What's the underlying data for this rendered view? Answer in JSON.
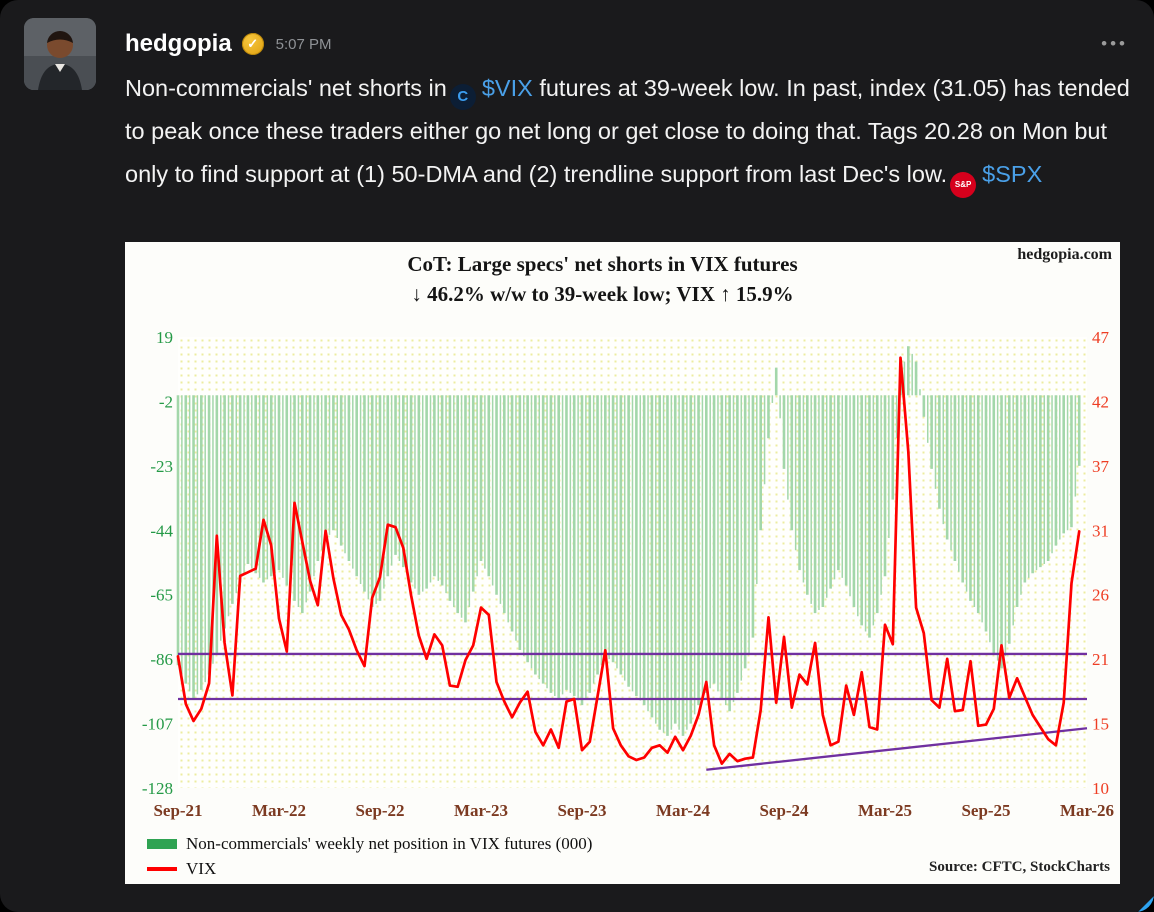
{
  "post": {
    "author": "hedgopia",
    "time": "5:07 PM",
    "badge_check": "✓",
    "menu_label": "•••",
    "body": {
      "segments": [
        {
          "type": "text",
          "text": "Non-commercials' net shorts in"
        },
        {
          "type": "cashtag",
          "symbol": "$VIX",
          "icon_label": "C",
          "icon_bg": "#0c1e35",
          "icon_color": "#3b9df0",
          "icon_font": "15px",
          "icon_name": "cboe-icon"
        },
        {
          "type": "text",
          "text": " futures at 39-week low. In past, index (31.05) has tended to peak once these traders either go net long or get close to doing that. Tags 20.28 on Mon but only to find support at (1) 50-DMA and (2) trendline support from last Dec's low."
        },
        {
          "type": "cashtag",
          "symbol": "$SPX",
          "icon_label": "S&P",
          "icon_bg": "#d6001c",
          "icon_color": "#ffffff",
          "icon_font": "8px",
          "icon_name": "sp500-icon"
        }
      ]
    }
  },
  "chart_data": {
    "type": "bar+line",
    "title": "CoT: Large specs' net shorts in VIX futures",
    "subtitle": "↓ 46.2% w/w to 39-week low; VIX ↑ 15.9%",
    "watermark": "hedgopia.com",
    "source": "Source: CFTC, StockCharts",
    "x_tick_labels": [
      "Sep-21",
      "Mar-22",
      "Sep-22",
      "Mar-23",
      "Sep-23",
      "Mar-24",
      "Sep-24",
      "Mar-25",
      "Sep-25",
      "Mar-26"
    ],
    "x_tick_color": "#7c3a21",
    "points_per_interval": 13,
    "left_axis": {
      "ticks": [
        19,
        -2,
        -23,
        -44,
        -65,
        -86,
        -107,
        -128
      ],
      "range": [
        19,
        -128
      ],
      "color": "#259a47"
    },
    "right_axis": {
      "ticks": [
        47,
        42,
        37,
        31,
        26,
        21,
        15,
        10
      ],
      "range": [
        47,
        10
      ],
      "color": "#ee3d23"
    },
    "series": [
      {
        "name": "Non-commercials' weekly net position in VIX futures (000)",
        "type": "bar",
        "axis": "left",
        "color": "#a3d7aa",
        "legend_color": "#2fa352",
        "values": [
          -88,
          -94,
          -99,
          -96,
          -91,
          -84,
          -76,
          -68,
          -61,
          -55,
          -58,
          -61,
          -59,
          -57,
          -62,
          -67,
          -71,
          -64,
          -54,
          -47,
          -44,
          -49,
          -54,
          -59,
          -64,
          -69,
          -67,
          -59,
          -52,
          -56,
          -61,
          -65,
          -63,
          -59,
          -62,
          -67,
          -71,
          -74,
          -64,
          -54,
          -59,
          -65,
          -71,
          -77,
          -83,
          -87,
          -91,
          -94,
          -97,
          -99,
          -96,
          -98,
          -101,
          -97,
          -91,
          -85,
          -87,
          -91,
          -95,
          -98,
          -101,
          -105,
          -109,
          -111,
          -107,
          -111,
          -107,
          -101,
          -97,
          -94,
          -99,
          -103,
          -97,
          -89,
          -79,
          -44,
          -14,
          9,
          -24,
          -44,
          -57,
          -65,
          -71,
          -69,
          -63,
          -57,
          -62,
          -69,
          -75,
          -79,
          -71,
          -59,
          -34,
          6,
          16,
          11,
          -7,
          -24,
          -37,
          -47,
          -54,
          -61,
          -67,
          -71,
          -77,
          -84,
          -89,
          -81,
          -69,
          -61,
          -58,
          -56,
          -54,
          -49,
          -45,
          -43,
          -23
        ]
      },
      {
        "name": "VIX",
        "type": "line",
        "axis": "right",
        "color": "#ff0000",
        "legend_color": "#ff0000",
        "values": [
          20.8,
          16.9,
          15.5,
          16.5,
          18.6,
          30.7,
          21.9,
          17.6,
          27.4,
          27.7,
          28.0,
          32.0,
          29.9,
          23.9,
          21.2,
          33.4,
          30.2,
          27.0,
          25.0,
          31.1,
          27.2,
          24.2,
          23.0,
          21.3,
          20.0,
          25.6,
          27.3,
          31.6,
          31.4,
          29.7,
          25.8,
          22.5,
          20.6,
          22.6,
          21.7,
          18.4,
          18.3,
          20.5,
          21.7,
          24.8,
          24.2,
          18.7,
          17.1,
          15.8,
          17.0,
          17.9,
          14.6,
          13.5,
          14.8,
          13.3,
          17.1,
          17.3,
          13.1,
          13.8,
          17.5,
          21.3,
          14.9,
          13.5,
          12.6,
          12.3,
          12.5,
          13.3,
          13.5,
          12.9,
          14.2,
          13.1,
          14.3,
          16.0,
          18.7,
          13.5,
          12.0,
          12.8,
          12.2,
          12.4,
          12.5,
          16.4,
          24.0,
          17.0,
          22.4,
          16.6,
          19.3,
          18.5,
          21.9,
          16.0,
          13.5,
          13.8,
          18.4,
          16.0,
          19.5,
          15.0,
          14.8,
          23.4,
          21.8,
          45.3,
          37.6,
          24.8,
          22.7,
          17.2,
          16.6,
          20.6,
          16.3,
          16.4,
          20.4,
          15.1,
          15.2,
          16.5,
          21.7,
          17.4,
          19.0,
          17.5,
          16.0,
          15.0,
          14.0,
          13.5,
          17.0,
          26.8,
          31.05
        ]
      }
    ],
    "overlays": {
      "color": "#7030a0",
      "hlines": [
        {
          "axis": "right",
          "value": 21.0
        },
        {
          "axis": "right",
          "value": 17.3
        }
      ],
      "trendline": {
        "axis": "right",
        "from": {
          "i": 68,
          "value": 11.5
        },
        "to": {
          "i": 117,
          "value": 14.9
        }
      }
    }
  }
}
